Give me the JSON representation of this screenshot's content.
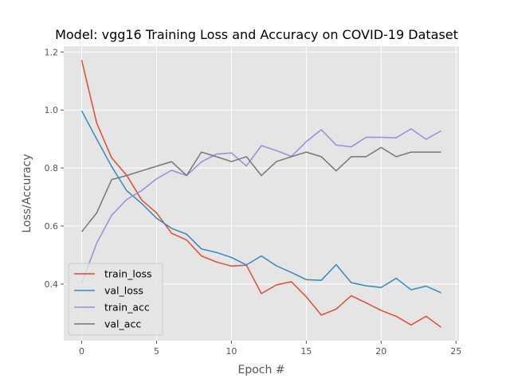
{
  "chart_data": {
    "type": "line",
    "title": "Model: vgg16 Training Loss and Accuracy on COVID-19 Dataset",
    "xlabel": "Epoch #",
    "ylabel": "Loss/Accuracy",
    "xlim": [
      -1.2,
      25.2
    ],
    "ylim": [
      0.205,
      1.22
    ],
    "x_ticks": [
      0,
      5,
      10,
      15,
      20,
      25
    ],
    "y_ticks": [
      0.4,
      0.6,
      0.8,
      1.0,
      1.2
    ],
    "grid": true,
    "legend_position": "lower-left",
    "x": [
      0,
      1,
      2,
      3,
      4,
      5,
      6,
      7,
      8,
      9,
      10,
      11,
      12,
      13,
      14,
      15,
      16,
      17,
      18,
      19,
      20,
      21,
      22,
      23,
      24
    ],
    "series": [
      {
        "name": "train_loss",
        "color": "#E24A33",
        "values": [
          1.172,
          0.955,
          0.835,
          0.775,
          0.69,
          0.645,
          0.575,
          0.552,
          0.497,
          0.476,
          0.462,
          0.465,
          0.367,
          0.397,
          0.408,
          0.356,
          0.293,
          0.314,
          0.36,
          0.335,
          0.309,
          0.289,
          0.259,
          0.289,
          0.251
        ]
      },
      {
        "name": "val_loss",
        "color": "#348ABD",
        "values": [
          0.997,
          0.9,
          0.805,
          0.722,
          0.678,
          0.627,
          0.592,
          0.572,
          0.521,
          0.509,
          0.492,
          0.466,
          0.497,
          0.463,
          0.44,
          0.415,
          0.413,
          0.467,
          0.405,
          0.394,
          0.388,
          0.42,
          0.38,
          0.393,
          0.37
        ]
      },
      {
        "name": "train_acc",
        "color": "#988ED5",
        "values": [
          0.402,
          0.541,
          0.637,
          0.691,
          0.722,
          0.763,
          0.792,
          0.774,
          0.821,
          0.848,
          0.852,
          0.807,
          0.877,
          0.86,
          0.84,
          0.891,
          0.932,
          0.879,
          0.873,
          0.906,
          0.906,
          0.904,
          0.935,
          0.899,
          0.928
        ]
      },
      {
        "name": "val_acc",
        "color": "#777777",
        "values": [
          0.58,
          0.645,
          0.76,
          0.774,
          0.79,
          0.806,
          0.822,
          0.774,
          0.855,
          0.839,
          0.822,
          0.839,
          0.774,
          0.822,
          0.839,
          0.855,
          0.839,
          0.79,
          0.839,
          0.839,
          0.871,
          0.839,
          0.855,
          0.855,
          0.855
        ]
      }
    ]
  },
  "colors": {
    "plot_background": "#E5E5E5",
    "grid": "#FFFFFF",
    "tick_color": "#555555"
  }
}
